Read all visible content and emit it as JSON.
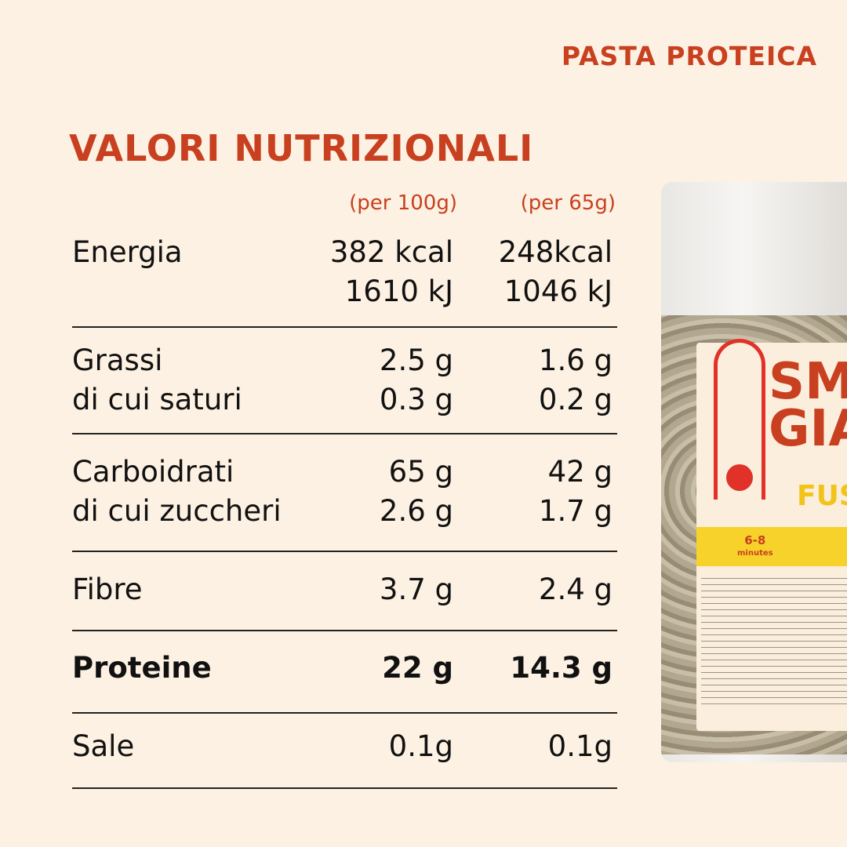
{
  "brand_label": "PASTA PROTEICA",
  "title": "VALORI NUTRIZIONALI",
  "columns": [
    "(per 100g)",
    "(per 65g)"
  ],
  "rows": [
    {
      "label": [
        "Energia",
        ""
      ],
      "per100": [
        "382 kcal",
        "1610 kJ"
      ],
      "per65": [
        "248kcal",
        "1046 kJ"
      ]
    },
    {
      "label": [
        "Grassi",
        "di cui saturi"
      ],
      "per100": [
        "2.5 g",
        "0.3 g"
      ],
      "per65": [
        "1.6 g",
        "0.2 g"
      ]
    },
    {
      "label": [
        "Carboidrati",
        "di cui zuccheri"
      ],
      "per100": [
        "65 g",
        "2.6 g"
      ],
      "per65": [
        "42 g",
        "1.7 g"
      ]
    },
    {
      "label": [
        "Fibre"
      ],
      "per100": [
        "3.7 g"
      ],
      "per65": [
        "2.4 g"
      ]
    },
    {
      "label": [
        "Proteine"
      ],
      "per100": [
        "22 g"
      ],
      "per65": [
        "14.3 g"
      ],
      "bold": true
    },
    {
      "label": [
        "Sale"
      ],
      "per100": [
        "0.1g"
      ],
      "per65": [
        "0.1g"
      ]
    }
  ],
  "package": {
    "logo": "SMALL GIANTS",
    "product": "FUSILLI",
    "cooking_time": "6-8",
    "cooking_unit": "minutes"
  },
  "colors": {
    "accent": "#c8401f",
    "background": "#fcf1e2"
  }
}
